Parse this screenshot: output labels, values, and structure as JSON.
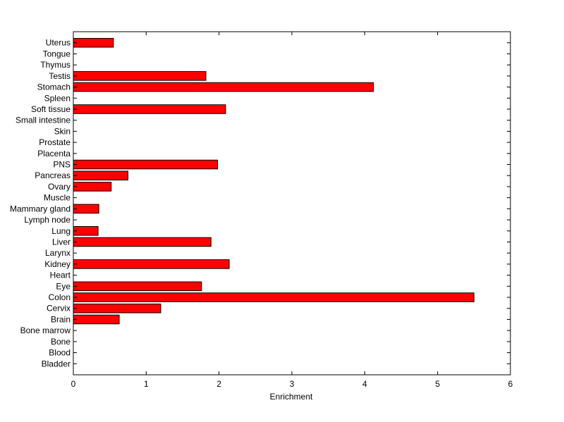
{
  "chart_data": {
    "type": "bar",
    "orientation": "horizontal",
    "title": "",
    "xlabel": "Enrichment",
    "ylabel": "",
    "xlim": [
      0,
      6
    ],
    "xticks": [
      0,
      1,
      2,
      3,
      4,
      5,
      6
    ],
    "grid": false,
    "legend": "none",
    "bar_color": "#ff0000",
    "bar_edge_color": "#000000",
    "categories": [
      "Bladder",
      "Blood",
      "Bone",
      "Bone marrow",
      "Brain",
      "Cervix",
      "Colon",
      "Eye",
      "Heart",
      "Kidney",
      "Larynx",
      "Liver",
      "Lung",
      "Lymph node",
      "Mammary gland",
      "Muscle",
      "Ovary",
      "Pancreas",
      "PNS",
      "Placenta",
      "Prostate",
      "Skin",
      "Small intestine",
      "Soft tissue",
      "Spleen",
      "Stomach",
      "Testis",
      "Thymus",
      "Tongue",
      "Uterus"
    ],
    "values": [
      0,
      0,
      0,
      0,
      0.63,
      1.2,
      5.5,
      1.76,
      0,
      2.14,
      0,
      1.89,
      0.34,
      0,
      0.35,
      0,
      0.52,
      0.75,
      1.98,
      0,
      0,
      0,
      0,
      2.09,
      0,
      4.12,
      1.82,
      0,
      0,
      0.55
    ]
  }
}
